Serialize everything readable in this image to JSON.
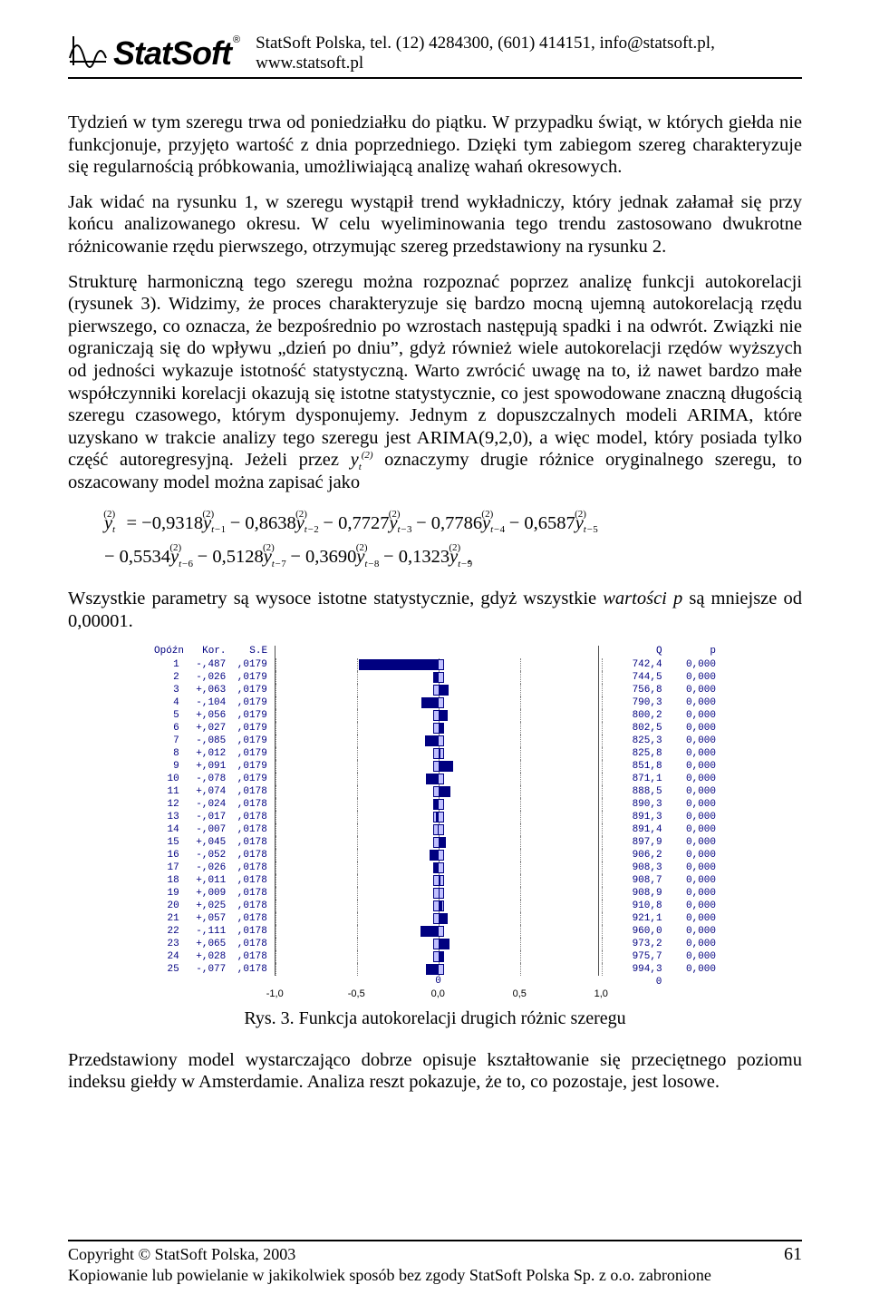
{
  "header": {
    "brand": "StatSoft",
    "line": "StatSoft Polska, tel. (12) 4284300, (601) 414151, info@statsoft.pl, www.statsoft.pl"
  },
  "para1": "Tydzień w tym szeregu trwa od poniedziałku do piątku. W przypadku świąt, w których giełda nie funkcjonuje, przyjęto wartość z dnia poprzedniego. Dzięki tym zabiegom szereg charakteryzuje się regularnością próbkowania, umożliwiającą analizę wahań okresowych.",
  "para2": "Jak widać na rysunku 1, w szeregu wystąpił trend wykładniczy, który jednak załamał się przy końcu analizowanego okresu. W celu wyeliminowania tego trendu zastosowano dwukrotne różnicowanie rzędu pierwszego, otrzymując szereg przedstawiony na rysunku 2.",
  "para3a": "Strukturę harmoniczną tego szeregu można rozpoznać poprzez analizę funkcji autokorelacji (rysunek 3). Widzimy, że proces charakteryzuje się bardzo mocną ujemną autokorelacją rzędu pierwszego, co oznacza, że bezpośrednio po wzrostach następują spadki i na odwrót. Związki nie ograniczają się do wpływu „dzień po dniu”, gdyż również wiele autokorelacji rzędów wyższych od jedności wykazuje istotność statystyczną. Warto zwrócić uwagę na to, iż nawet bardzo małe współczynniki korelacji okazują się istotne statystycznie, co jest spowodowane znaczną długością szeregu czasowego, którym dysponujemy. Jednym z dopuszczalnych modeli ARIMA, które uzyskano w trakcie analizy tego szeregu jest ARIMA(9,2,0), a więc model, który posiada tylko część autoregresyjną. Jeżeli przez ",
  "para3b": " oznaczymy drugie różnice oryginalnego szeregu, to oszacowany model można zapisać jako",
  "para4a": "Wszystkie parametry są wysoce istotne statystycznie, gdyż wszystkie ",
  "para4b": "wartości p",
  "para4c": " są mniejsze od 0,00001.",
  "eq": {
    "c": [
      "−0,9318",
      "− 0,8638",
      "− 0,7727",
      "− 0,7786",
      "− 0,6587",
      "− 0,5534",
      "− 0,5128",
      "− 0,3690",
      "− 0,1323"
    ]
  },
  "chart": {
    "labels": {
      "lag": "Opóźn",
      "kor": "Kor.",
      "se": "S.E",
      "q": "Q",
      "p": "p"
    },
    "ci": 0.035,
    "xmin": -1.0,
    "xmax": 1.0,
    "ticks": [
      -1.0,
      -0.5,
      0.0,
      0.5,
      1.0
    ],
    "tick_labels": [
      "-1,0",
      "-0,5",
      "0,0",
      "0,5",
      "1,0"
    ],
    "end_zero": "0",
    "grid_color": "#808080",
    "bar_color": "#000080",
    "ci_fill": "#c0c0ff",
    "ci_border": "#000080",
    "text_color": "#000080",
    "tick_font": "11px Arial",
    "mono_font": "11px 'Courier New'",
    "rows": [
      {
        "lag": "1",
        "kor": "-,487",
        "se": ",0179",
        "r": -0.487,
        "q": "742,4",
        "p": "0,000"
      },
      {
        "lag": "2",
        "kor": "-,026",
        "se": ",0179",
        "r": -0.026,
        "q": "744,5",
        "p": "0,000"
      },
      {
        "lag": "3",
        "kor": "+,063",
        "se": ",0179",
        "r": 0.063,
        "q": "756,8",
        "p": "0,000"
      },
      {
        "lag": "4",
        "kor": "-,104",
        "se": ",0179",
        "r": -0.104,
        "q": "790,3",
        "p": "0,000"
      },
      {
        "lag": "5",
        "kor": "+,056",
        "se": ",0179",
        "r": 0.056,
        "q": "800,2",
        "p": "0,000"
      },
      {
        "lag": "6",
        "kor": "+,027",
        "se": ",0179",
        "r": 0.027,
        "q": "802,5",
        "p": "0,000"
      },
      {
        "lag": "7",
        "kor": "-,085",
        "se": ",0179",
        "r": -0.085,
        "q": "825,3",
        "p": "0,000"
      },
      {
        "lag": "8",
        "kor": "+,012",
        "se": ",0179",
        "r": 0.012,
        "q": "825,8",
        "p": "0,000"
      },
      {
        "lag": "9",
        "kor": "+,091",
        "se": ",0179",
        "r": 0.091,
        "q": "851,8",
        "p": "0,000"
      },
      {
        "lag": "10",
        "kor": "-,078",
        "se": ",0179",
        "r": -0.078,
        "q": "871,1",
        "p": "0,000"
      },
      {
        "lag": "11",
        "kor": "+,074",
        "se": ",0178",
        "r": 0.074,
        "q": "888,5",
        "p": "0,000"
      },
      {
        "lag": "12",
        "kor": "-,024",
        "se": ",0178",
        "r": -0.024,
        "q": "890,3",
        "p": "0,000"
      },
      {
        "lag": "13",
        "kor": "-,017",
        "se": ",0178",
        "r": -0.017,
        "q": "891,3",
        "p": "0,000"
      },
      {
        "lag": "14",
        "kor": "-,007",
        "se": ",0178",
        "r": -0.007,
        "q": "891,4",
        "p": "0,000"
      },
      {
        "lag": "15",
        "kor": "+,045",
        "se": ",0178",
        "r": 0.045,
        "q": "897,9",
        "p": "0,000"
      },
      {
        "lag": "16",
        "kor": "-,052",
        "se": ",0178",
        "r": -0.052,
        "q": "906,2",
        "p": "0,000"
      },
      {
        "lag": "17",
        "kor": "-,026",
        "se": ",0178",
        "r": -0.026,
        "q": "908,3",
        "p": "0,000"
      },
      {
        "lag": "18",
        "kor": "+,011",
        "se": ",0178",
        "r": 0.011,
        "q": "908,7",
        "p": "0,000"
      },
      {
        "lag": "19",
        "kor": "+,009",
        "se": ",0178",
        "r": 0.009,
        "q": "908,9",
        "p": "0,000"
      },
      {
        "lag": "20",
        "kor": "+,025",
        "se": ",0178",
        "r": 0.025,
        "q": "910,8",
        "p": "0,000"
      },
      {
        "lag": "21",
        "kor": "+,057",
        "se": ",0178",
        "r": 0.057,
        "q": "921,1",
        "p": "0,000"
      },
      {
        "lag": "22",
        "kor": "-,111",
        "se": ",0178",
        "r": -0.111,
        "q": "960,0",
        "p": "0,000"
      },
      {
        "lag": "23",
        "kor": "+,065",
        "se": ",0178",
        "r": 0.065,
        "q": "973,2",
        "p": "0,000"
      },
      {
        "lag": "24",
        "kor": "+,028",
        "se": ",0178",
        "r": 0.028,
        "q": "975,7",
        "p": "0,000"
      },
      {
        "lag": "25",
        "kor": "-,077",
        "se": ",0178",
        "r": -0.077,
        "q": "994,3",
        "p": "0,000"
      }
    ]
  },
  "caption": "Rys. 3. Funkcja autokorelacji drugich różnic szeregu",
  "para5": "Przedstawiony model wystarczająco dobrze opisuje kształtowanie się przeciętnego poziomu indeksu giełdy w Amsterdamie. Analiza reszt pokazuje, że to, co pozostaje, jest losowe.",
  "footer": {
    "l1": "Copyright © StatSoft Polska, 2003",
    "l2": "Kopiowanie lub powielanie w jakikolwiek sposób bez zgody StatSoft Polska Sp. z o.o. zabronione",
    "page": "61"
  }
}
